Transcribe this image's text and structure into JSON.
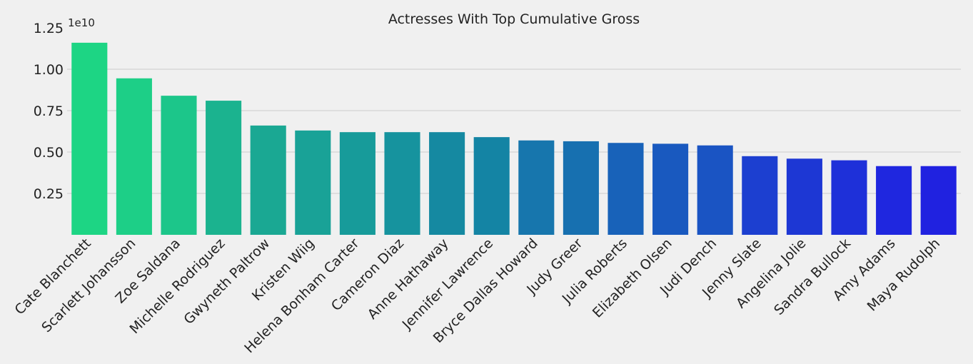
{
  "chart_data": {
    "type": "bar",
    "title": "Actresses With Top Cumulative Gross",
    "xlabel": "",
    "ylabel": "",
    "offset_label": "1e10",
    "ylim": [
      0,
      1.25
    ],
    "yticks": [
      0.25,
      0.5,
      0.75,
      1.0,
      1.25
    ],
    "ytick_labels": [
      "0.25",
      "0.50",
      "0.75",
      "1.00",
      "1.25"
    ],
    "grid": true,
    "categories": [
      "Cate Blanchett",
      "Scarlett Johansson",
      "Zoe Saldana",
      "Michelle Rodriguez",
      "Gwyneth Paltrow",
      "Kristen Wiig",
      "Helena Bonham Carter",
      "Cameron Diaz",
      "Anne Hathaway",
      "Jennifer Lawrence",
      "Bryce Dallas Howard",
      "Judy Greer",
      "Julia Roberts",
      "Elizabeth Olsen",
      "Judi Dench",
      "Jenny Slate",
      "Angelina Jolie",
      "Sandra Bullock",
      "Amy Adams",
      "Maya Rudolph"
    ],
    "values": [
      1.16,
      0.945,
      0.84,
      0.81,
      0.66,
      0.63,
      0.62,
      0.62,
      0.62,
      0.59,
      0.57,
      0.565,
      0.555,
      0.55,
      0.54,
      0.475,
      0.46,
      0.45,
      0.415,
      0.415
    ],
    "colors": [
      "#1dd584",
      "#1dcf87",
      "#1cc68a",
      "#1bb38f",
      "#1aa893",
      "#19a297",
      "#179b9a",
      "#16939e",
      "#1589a1",
      "#1484a4",
      "#1776ad",
      "#1770b0",
      "#1862b9",
      "#1959bf",
      "#1a54c3",
      "#1c3fd0",
      "#1d37d4",
      "#1e30d9",
      "#1f27df",
      "#2022e0"
    ]
  }
}
